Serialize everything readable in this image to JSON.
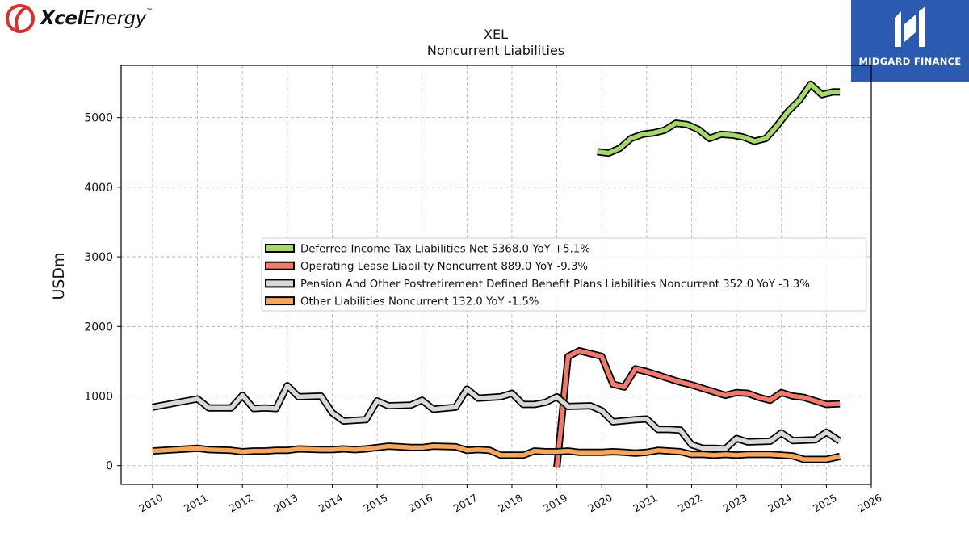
{
  "header": {
    "left_logo_bold": "Xcel",
    "left_logo_rest": "Energy",
    "left_logo_mark": "™",
    "right_logo_name": "MIDGARD FINANCE"
  },
  "chart_data": {
    "type": "line",
    "title": "XEL",
    "subtitle": "Noncurrent  Liabilities",
    "ylabel": "USDm",
    "xlabel": "",
    "xlim": [
      2009.3,
      2026.0
    ],
    "ylim": [
      -270,
      5750
    ],
    "x_ticks": [
      2010,
      2011,
      2012,
      2013,
      2014,
      2015,
      2016,
      2017,
      2018,
      2019,
      2020,
      2021,
      2022,
      2023,
      2024,
      2025,
      2026
    ],
    "y_ticks": [
      0,
      1000,
      2000,
      3000,
      4000,
      5000
    ],
    "grid": true,
    "legend_position": "center",
    "series": [
      {
        "name": "Deferred Income Tax Liabilities Net  5368.0 YoY +5.1%",
        "color": "#a8d86a",
        "points": [
          [
            2019.9,
            4510
          ],
          [
            2020.15,
            4490
          ],
          [
            2020.4,
            4560
          ],
          [
            2020.65,
            4700
          ],
          [
            2020.9,
            4760
          ],
          [
            2021.15,
            4780
          ],
          [
            2021.4,
            4820
          ],
          [
            2021.65,
            4920
          ],
          [
            2021.9,
            4900
          ],
          [
            2022.15,
            4830
          ],
          [
            2022.4,
            4700
          ],
          [
            2022.65,
            4760
          ],
          [
            2022.9,
            4750
          ],
          [
            2023.15,
            4720
          ],
          [
            2023.4,
            4660
          ],
          [
            2023.65,
            4700
          ],
          [
            2023.9,
            4880
          ],
          [
            2024.15,
            5090
          ],
          [
            2024.4,
            5250
          ],
          [
            2024.65,
            5480
          ],
          [
            2024.9,
            5330
          ],
          [
            2025.15,
            5370
          ],
          [
            2025.3,
            5368
          ]
        ]
      },
      {
        "name": "Operating Lease Liability Noncurrent  889.0 YoY -9.3%",
        "color": "#f07a6e",
        "points": [
          [
            2019.0,
            -30
          ],
          [
            2019.25,
            1570
          ],
          [
            2019.5,
            1650
          ],
          [
            2019.75,
            1610
          ],
          [
            2020.0,
            1570
          ],
          [
            2020.25,
            1170
          ],
          [
            2020.5,
            1130
          ],
          [
            2020.75,
            1390
          ],
          [
            2021.0,
            1350
          ],
          [
            2021.25,
            1300
          ],
          [
            2021.5,
            1250
          ],
          [
            2021.75,
            1200
          ],
          [
            2022.0,
            1160
          ],
          [
            2022.25,
            1110
          ],
          [
            2022.5,
            1060
          ],
          [
            2022.75,
            1010
          ],
          [
            2023.0,
            1050
          ],
          [
            2023.25,
            1040
          ],
          [
            2023.5,
            980
          ],
          [
            2023.75,
            940
          ],
          [
            2024.0,
            1050
          ],
          [
            2024.25,
            1000
          ],
          [
            2024.5,
            980
          ],
          [
            2024.75,
            930
          ],
          [
            2025.0,
            880
          ],
          [
            2025.3,
            889
          ]
        ]
      },
      {
        "name": "Pension And Other Postretirement Defined Benefit Plans Liabilities Noncurrent  352.0 YoY -3.3%",
        "color": "#d8d8d8",
        "points": [
          [
            2010.0,
            840
          ],
          [
            2011.0,
            960
          ],
          [
            2011.25,
            830
          ],
          [
            2011.75,
            830
          ],
          [
            2012.0,
            1010
          ],
          [
            2012.25,
            820
          ],
          [
            2012.5,
            830
          ],
          [
            2012.75,
            820
          ],
          [
            2013.0,
            1150
          ],
          [
            2013.25,
            990
          ],
          [
            2013.75,
            1000
          ],
          [
            2014.0,
            760
          ],
          [
            2014.25,
            640
          ],
          [
            2014.75,
            660
          ],
          [
            2015.0,
            930
          ],
          [
            2015.25,
            860
          ],
          [
            2015.75,
            870
          ],
          [
            2016.0,
            940
          ],
          [
            2016.25,
            810
          ],
          [
            2016.75,
            840
          ],
          [
            2017.0,
            1100
          ],
          [
            2017.25,
            970
          ],
          [
            2017.75,
            990
          ],
          [
            2018.0,
            1040
          ],
          [
            2018.25,
            880
          ],
          [
            2018.5,
            880
          ],
          [
            2018.75,
            910
          ],
          [
            2019.0,
            990
          ],
          [
            2019.25,
            850
          ],
          [
            2019.75,
            860
          ],
          [
            2020.0,
            790
          ],
          [
            2020.25,
            630
          ],
          [
            2020.75,
            660
          ],
          [
            2021.0,
            670
          ],
          [
            2021.25,
            520
          ],
          [
            2021.5,
            520
          ],
          [
            2021.75,
            510
          ],
          [
            2022.0,
            300
          ],
          [
            2022.25,
            250
          ],
          [
            2022.5,
            250
          ],
          [
            2022.75,
            240
          ],
          [
            2023.0,
            390
          ],
          [
            2023.25,
            340
          ],
          [
            2023.75,
            350
          ],
          [
            2024.0,
            470
          ],
          [
            2024.25,
            360
          ],
          [
            2024.75,
            370
          ],
          [
            2025.0,
            480
          ],
          [
            2025.3,
            352
          ]
        ]
      },
      {
        "name": "Other Liabilities Noncurrent  132.0 YoY -1.5%",
        "color": "#f4a55e",
        "points": [
          [
            2010.0,
            210
          ],
          [
            2010.5,
            230
          ],
          [
            2011.0,
            250
          ],
          [
            2011.25,
            230
          ],
          [
            2011.75,
            220
          ],
          [
            2012.0,
            200
          ],
          [
            2012.25,
            210
          ],
          [
            2012.5,
            210
          ],
          [
            2012.75,
            220
          ],
          [
            2013.0,
            220
          ],
          [
            2013.25,
            240
          ],
          [
            2013.75,
            230
          ],
          [
            2014.0,
            230
          ],
          [
            2014.25,
            240
          ],
          [
            2014.5,
            230
          ],
          [
            2014.75,
            240
          ],
          [
            2015.0,
            260
          ],
          [
            2015.25,
            280
          ],
          [
            2015.5,
            270
          ],
          [
            2015.75,
            260
          ],
          [
            2016.0,
            260
          ],
          [
            2016.25,
            280
          ],
          [
            2016.75,
            270
          ],
          [
            2017.0,
            220
          ],
          [
            2017.25,
            230
          ],
          [
            2017.5,
            220
          ],
          [
            2017.75,
            150
          ],
          [
            2018.0,
            150
          ],
          [
            2018.25,
            150
          ],
          [
            2018.5,
            210
          ],
          [
            2018.75,
            200
          ],
          [
            2019.0,
            200
          ],
          [
            2019.25,
            210
          ],
          [
            2019.5,
            190
          ],
          [
            2019.75,
            190
          ],
          [
            2020.0,
            190
          ],
          [
            2020.25,
            200
          ],
          [
            2020.5,
            190
          ],
          [
            2020.75,
            180
          ],
          [
            2021.0,
            190
          ],
          [
            2021.25,
            220
          ],
          [
            2021.5,
            210
          ],
          [
            2021.75,
            200
          ],
          [
            2022.0,
            160
          ],
          [
            2022.25,
            160
          ],
          [
            2022.5,
            150
          ],
          [
            2022.75,
            160
          ],
          [
            2023.0,
            150
          ],
          [
            2023.25,
            160
          ],
          [
            2023.5,
            160
          ],
          [
            2023.75,
            160
          ],
          [
            2024.0,
            150
          ],
          [
            2024.25,
            140
          ],
          [
            2024.5,
            90
          ],
          [
            2024.75,
            90
          ],
          [
            2025.0,
            90
          ],
          [
            2025.3,
            132
          ]
        ]
      }
    ]
  }
}
